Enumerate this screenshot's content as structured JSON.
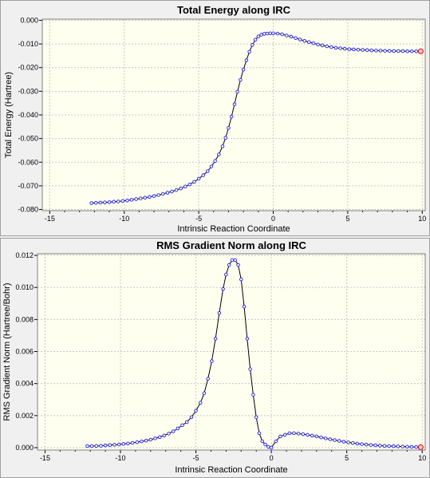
{
  "chart_data": [
    {
      "type": "line",
      "title": "Total Energy along IRC",
      "xlabel": "Intrinsic Reaction Coordinate",
      "ylabel": "Total Energy (Hartree)",
      "xlim": [
        -15.5,
        10.2
      ],
      "ylim": [
        -0.0805,
        0.0005
      ],
      "xticks": [
        -15,
        -10,
        -5,
        0,
        5,
        10
      ],
      "xtick_labels": [
        "-15",
        "-10",
        "-5",
        "0",
        "5",
        "10"
      ],
      "yticks": [
        0,
        -0.01,
        -0.02,
        -0.03,
        -0.04,
        -0.05,
        -0.06,
        -0.07,
        -0.08
      ],
      "ytick_labels": [
        "0.000",
        "-0.010",
        "-0.020",
        "-0.030",
        "-0.040",
        "-0.050",
        "-0.060",
        "-0.070",
        "-0.080"
      ],
      "grid": true,
      "legend": "none",
      "highlight_point": "last",
      "series": [
        {
          "x": [
            -12.2,
            -11.9,
            -11.6,
            -11.3,
            -11.0,
            -10.7,
            -10.4,
            -10.1,
            -9.8,
            -9.5,
            -9.2,
            -8.9,
            -8.6,
            -8.3,
            -8.0,
            -7.7,
            -7.4,
            -7.1,
            -6.8,
            -6.5,
            -6.2,
            -5.9,
            -5.6,
            -5.3,
            -5.0,
            -4.7,
            -4.4,
            -4.15,
            -3.9,
            -3.65,
            -3.4,
            -3.2,
            -3.0,
            -2.8,
            -2.6,
            -2.4,
            -2.2,
            -2.0,
            -1.8,
            -1.6,
            -1.4,
            -1.2,
            -1.0,
            -0.8,
            -0.6,
            -0.4,
            -0.2,
            0.0,
            0.3,
            0.6,
            0.9,
            1.2,
            1.5,
            1.8,
            2.1,
            2.4,
            2.7,
            3.0,
            3.3,
            3.6,
            3.9,
            4.2,
            4.5,
            4.8,
            5.1,
            5.4,
            5.7,
            6.0,
            6.3,
            6.6,
            6.9,
            7.2,
            7.5,
            7.8,
            8.1,
            8.4,
            8.7,
            9.0,
            9.3,
            9.6,
            9.9
          ],
          "y": [
            -0.0773,
            -0.0772,
            -0.0771,
            -0.077,
            -0.0769,
            -0.0767,
            -0.0766,
            -0.0764,
            -0.0762,
            -0.0759,
            -0.0756,
            -0.0753,
            -0.075,
            -0.0747,
            -0.0743,
            -0.0739,
            -0.0734,
            -0.0729,
            -0.0724,
            -0.0718,
            -0.0711,
            -0.0703,
            -0.0694,
            -0.0683,
            -0.067,
            -0.0655,
            -0.0638,
            -0.0618,
            -0.0595,
            -0.0567,
            -0.0533,
            -0.0497,
            -0.0455,
            -0.0407,
            -0.0355,
            -0.0302,
            -0.0252,
            -0.0208,
            -0.0169,
            -0.0133,
            -0.0104,
            -0.0082,
            -0.0068,
            -0.0061,
            -0.0057,
            -0.0056,
            -0.0055,
            -0.0055,
            -0.0056,
            -0.0059,
            -0.0064,
            -0.0069,
            -0.0075,
            -0.0081,
            -0.0087,
            -0.0092,
            -0.0097,
            -0.0102,
            -0.0106,
            -0.011,
            -0.0113,
            -0.0116,
            -0.0118,
            -0.012,
            -0.0122,
            -0.0123,
            -0.0124,
            -0.0125,
            -0.0126,
            -0.0127,
            -0.0128,
            -0.0128,
            -0.0129,
            -0.0129,
            -0.013,
            -0.013,
            -0.013,
            -0.0131,
            -0.0131,
            -0.0131,
            -0.0131
          ]
        }
      ]
    },
    {
      "type": "line",
      "title": "RMS Gradient Norm along IRC",
      "xlabel": "Intrinsic Reaction Coordinate",
      "ylabel": "RMS Gradient Norm (Hartree/Bohr)",
      "xlim": [
        -15.5,
        10.2
      ],
      "ylim": [
        -0.00015,
        0.0121
      ],
      "xticks": [
        -15,
        -10,
        -5,
        0,
        5,
        10
      ],
      "xtick_labels": [
        "-15",
        "-10",
        "-5",
        "0",
        "5",
        "10"
      ],
      "yticks": [
        0,
        0.002,
        0.004,
        0.006,
        0.008,
        0.01,
        0.012
      ],
      "ytick_labels": [
        "0.000",
        "0.002",
        "0.004",
        "0.006",
        "0.008",
        "0.010",
        "0.012"
      ],
      "grid": true,
      "legend": "none",
      "highlight_point": "last",
      "series": [
        {
          "x": [
            -12.2,
            -11.9,
            -11.6,
            -11.3,
            -11.0,
            -10.7,
            -10.4,
            -10.1,
            -9.8,
            -9.5,
            -9.2,
            -8.9,
            -8.6,
            -8.3,
            -8.0,
            -7.7,
            -7.4,
            -7.1,
            -6.8,
            -6.5,
            -6.2,
            -5.9,
            -5.6,
            -5.3,
            -5.0,
            -4.7,
            -4.45,
            -4.2,
            -3.95,
            -3.7,
            -3.45,
            -3.2,
            -3.0,
            -2.8,
            -2.6,
            -2.4,
            -2.2,
            -2.0,
            -1.8,
            -1.6,
            -1.4,
            -1.2,
            -1.0,
            -0.8,
            -0.6,
            -0.4,
            -0.2,
            0.0,
            0.3,
            0.6,
            0.9,
            1.2,
            1.5,
            1.8,
            2.1,
            2.4,
            2.7,
            3.0,
            3.3,
            3.6,
            3.9,
            4.2,
            4.5,
            4.8,
            5.1,
            5.4,
            5.7,
            6.0,
            6.3,
            6.6,
            6.9,
            7.2,
            7.5,
            7.8,
            8.1,
            8.4,
            8.7,
            9.0,
            9.3,
            9.6,
            9.9
          ],
          "y": [
            0.0001,
            0.0001,
            0.00011,
            0.00012,
            0.00014,
            0.00016,
            0.00018,
            0.0002,
            0.00023,
            0.00026,
            0.0003,
            0.00034,
            0.00039,
            0.00044,
            0.0005,
            0.00058,
            0.00066,
            0.00076,
            0.00088,
            0.00102,
            0.0012,
            0.0014,
            0.0016,
            0.0019,
            0.0023,
            0.0028,
            0.0034,
            0.0043,
            0.0054,
            0.0068,
            0.0084,
            0.0099,
            0.0108,
            0.0114,
            0.0117,
            0.0117,
            0.0114,
            0.0105,
            0.0088,
            0.0068,
            0.0049,
            0.0033,
            0.0019,
            0.0009,
            0.0004,
            0.0002,
            5e-05,
            0.0,
            0.0004,
            0.0007,
            0.0008,
            0.0009,
            0.0009,
            0.00088,
            0.00084,
            0.0008,
            0.00075,
            0.0007,
            0.00064,
            0.00058,
            0.00052,
            0.00047,
            0.00042,
            0.00037,
            0.00033,
            0.00029,
            0.00025,
            0.00022,
            0.00019,
            0.00017,
            0.00015,
            0.00013,
            0.00011,
            0.0001,
            9e-05,
            8e-05,
            7e-05,
            6e-05,
            5e-05,
            4e-05,
            3e-05
          ]
        }
      ]
    }
  ],
  "colors": {
    "plot_background": "#fffff0",
    "panel_background": "#f0f0f0",
    "grid": "#c8c8c8",
    "line": "#000000",
    "marker": "#1e1ee6",
    "highlight_marker": "#e61e1e"
  }
}
